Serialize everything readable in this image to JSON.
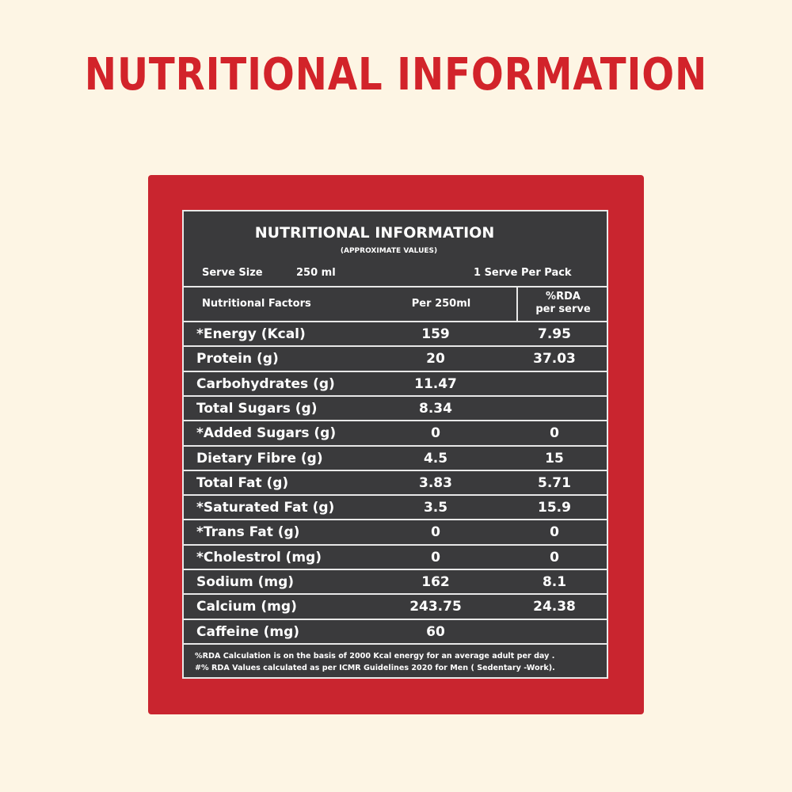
{
  "page_title": "NUTRITIONAL INFORMATION",
  "panel": {
    "title": "NUTRITIONAL INFORMATION",
    "subtitle": "(APPROXIMATE VALUES)",
    "serve_size_label": "Serve Size",
    "serve_size_value": "250 ml",
    "serves_per_pack": "1 Serve Per Pack",
    "headers": {
      "factor": "Nutritional Factors",
      "per": "Per 250ml",
      "rda_line1": "%RDA",
      "rda_line2": "per serve"
    },
    "rows": [
      {
        "factor": "*Energy (Kcal)",
        "per": "159",
        "rda": "7.95"
      },
      {
        "factor": "Protein (g)",
        "per": "20",
        "rda": "37.03"
      },
      {
        "factor": "Carbohydrates (g)",
        "per": "11.47",
        "rda": ""
      },
      {
        "factor": "Total Sugars (g)",
        "per": "8.34",
        "rda": ""
      },
      {
        "factor": "*Added Sugars (g)",
        "per": "0",
        "rda": "0"
      },
      {
        "factor": "Dietary Fibre (g)",
        "per": "4.5",
        "rda": "15"
      },
      {
        "factor": "Total Fat (g)",
        "per": "3.83",
        "rda": "5.71"
      },
      {
        "factor": "*Saturated Fat (g)",
        "per": "3.5",
        "rda": "15.9"
      },
      {
        "factor": "*Trans Fat (g)",
        "per": "0",
        "rda": "0"
      },
      {
        "factor": "*Cholestrol (mg)",
        "per": "0",
        "rda": "0"
      },
      {
        "factor": "Sodium (mg)",
        "per": "162",
        "rda": "8.1"
      },
      {
        "factor": "Calcium (mg)",
        "per": "243.75",
        "rda": "24.38"
      },
      {
        "factor": "Caffeine (mg)",
        "per": "60",
        "rda": ""
      }
    ],
    "footnote_1": "%RDA Calculation is on the basis of 2000 Kcal energy for an average adult  per day .",
    "footnote_2": "#% RDA Values calculated as per ICMR Guidelines 2020 for Men ( Sedentary -Work)."
  }
}
